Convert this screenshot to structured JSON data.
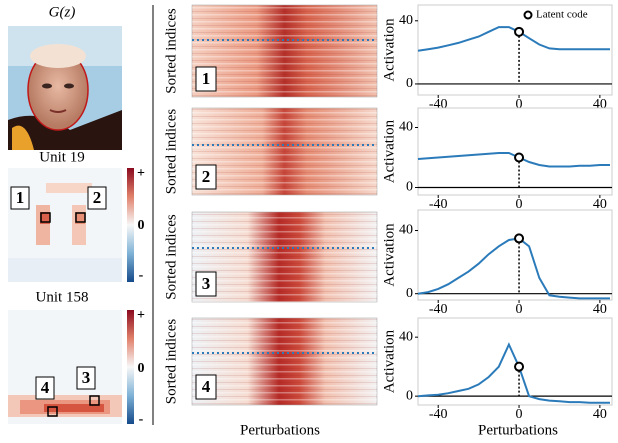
{
  "left": {
    "title": "G(z)",
    "units": [
      {
        "label": "Unit 19",
        "markers": [
          "1",
          "2"
        ]
      },
      {
        "label": "Unit 158",
        "markers": [
          "4",
          "3"
        ]
      }
    ],
    "colorbar": [
      "+",
      "0",
      "-"
    ]
  },
  "middle": {
    "ylabel": "Sorted indices",
    "xlabel": "Perturbations",
    "panels": [
      "1",
      "2",
      "3",
      "4"
    ]
  },
  "chart_data": [
    {
      "type": "line",
      "ylabel": "Activation",
      "legend_label": "Latent code",
      "x": [
        -50,
        -45,
        -40,
        -35,
        -30,
        -25,
        -20,
        -15,
        -10,
        -5,
        0,
        5,
        10,
        15,
        20,
        25,
        30,
        35,
        40,
        45
      ],
      "values": [
        21,
        22,
        23,
        24.5,
        26,
        28,
        30,
        33,
        36,
        36,
        33,
        29,
        25,
        22.5,
        22,
        22,
        22,
        22,
        22,
        22
      ],
      "color": "#2b7bba",
      "latent_x": 0,
      "latent_y": 33,
      "xlim": [
        -50,
        46
      ],
      "ylim": [
        -7,
        50
      ],
      "xticks": [
        -40,
        0,
        40
      ],
      "yticks": [
        0,
        40
      ]
    },
    {
      "type": "line",
      "ylabel": "Activation",
      "x": [
        -50,
        -45,
        -40,
        -35,
        -30,
        -25,
        -20,
        -15,
        -10,
        -5,
        0,
        5,
        10,
        15,
        20,
        25,
        30,
        35,
        40,
        45
      ],
      "values": [
        19,
        19.5,
        20,
        20.5,
        21,
        21.5,
        22,
        22.5,
        23,
        23,
        20,
        17,
        15,
        14,
        14,
        14,
        14.5,
        14.5,
        15,
        15
      ],
      "color": "#2b7bba",
      "latent_x": 0,
      "latent_y": 20,
      "xlim": [
        -50,
        46
      ],
      "ylim": [
        -5,
        53
      ],
      "xticks": [
        -40,
        0,
        40
      ],
      "yticks": [
        0,
        40
      ]
    },
    {
      "type": "line",
      "ylabel": "Activation",
      "x": [
        -50,
        -45,
        -40,
        -35,
        -30,
        -25,
        -20,
        -15,
        -10,
        -5,
        0,
        5,
        10,
        15,
        20,
        25,
        30,
        35,
        40,
        45
      ],
      "values": [
        0,
        1,
        3,
        6,
        10,
        14,
        19,
        25,
        30,
        34,
        35,
        30,
        10,
        -1,
        -2,
        -2.5,
        -3,
        -3,
        -3,
        -3
      ],
      "color": "#2b7bba",
      "latent_x": 0,
      "latent_y": 35,
      "xlim": [
        -50,
        46
      ],
      "ylim": [
        -4,
        53
      ],
      "xticks": [
        -40,
        0,
        40
      ],
      "yticks": [
        0,
        40
      ]
    },
    {
      "type": "line",
      "ylabel": "Activation",
      "xlabel": "Perturbations",
      "x": [
        -50,
        -45,
        -40,
        -35,
        -30,
        -25,
        -20,
        -15,
        -10,
        -5,
        0,
        5,
        10,
        15,
        20,
        25,
        30,
        35,
        40,
        45
      ],
      "values": [
        0,
        0.5,
        1,
        2,
        3.5,
        5,
        8,
        13,
        20,
        35,
        20,
        0,
        -2,
        -3,
        -3.5,
        -4,
        -4,
        -4.5,
        -4.5,
        -4.5
      ],
      "color": "#2b7bba",
      "latent_x": 0,
      "latent_y": 20,
      "xlim": [
        -50,
        46
      ],
      "ylim": [
        -6,
        53
      ],
      "xticks": [
        -40,
        0,
        40
      ],
      "yticks": [
        0,
        40
      ]
    }
  ]
}
